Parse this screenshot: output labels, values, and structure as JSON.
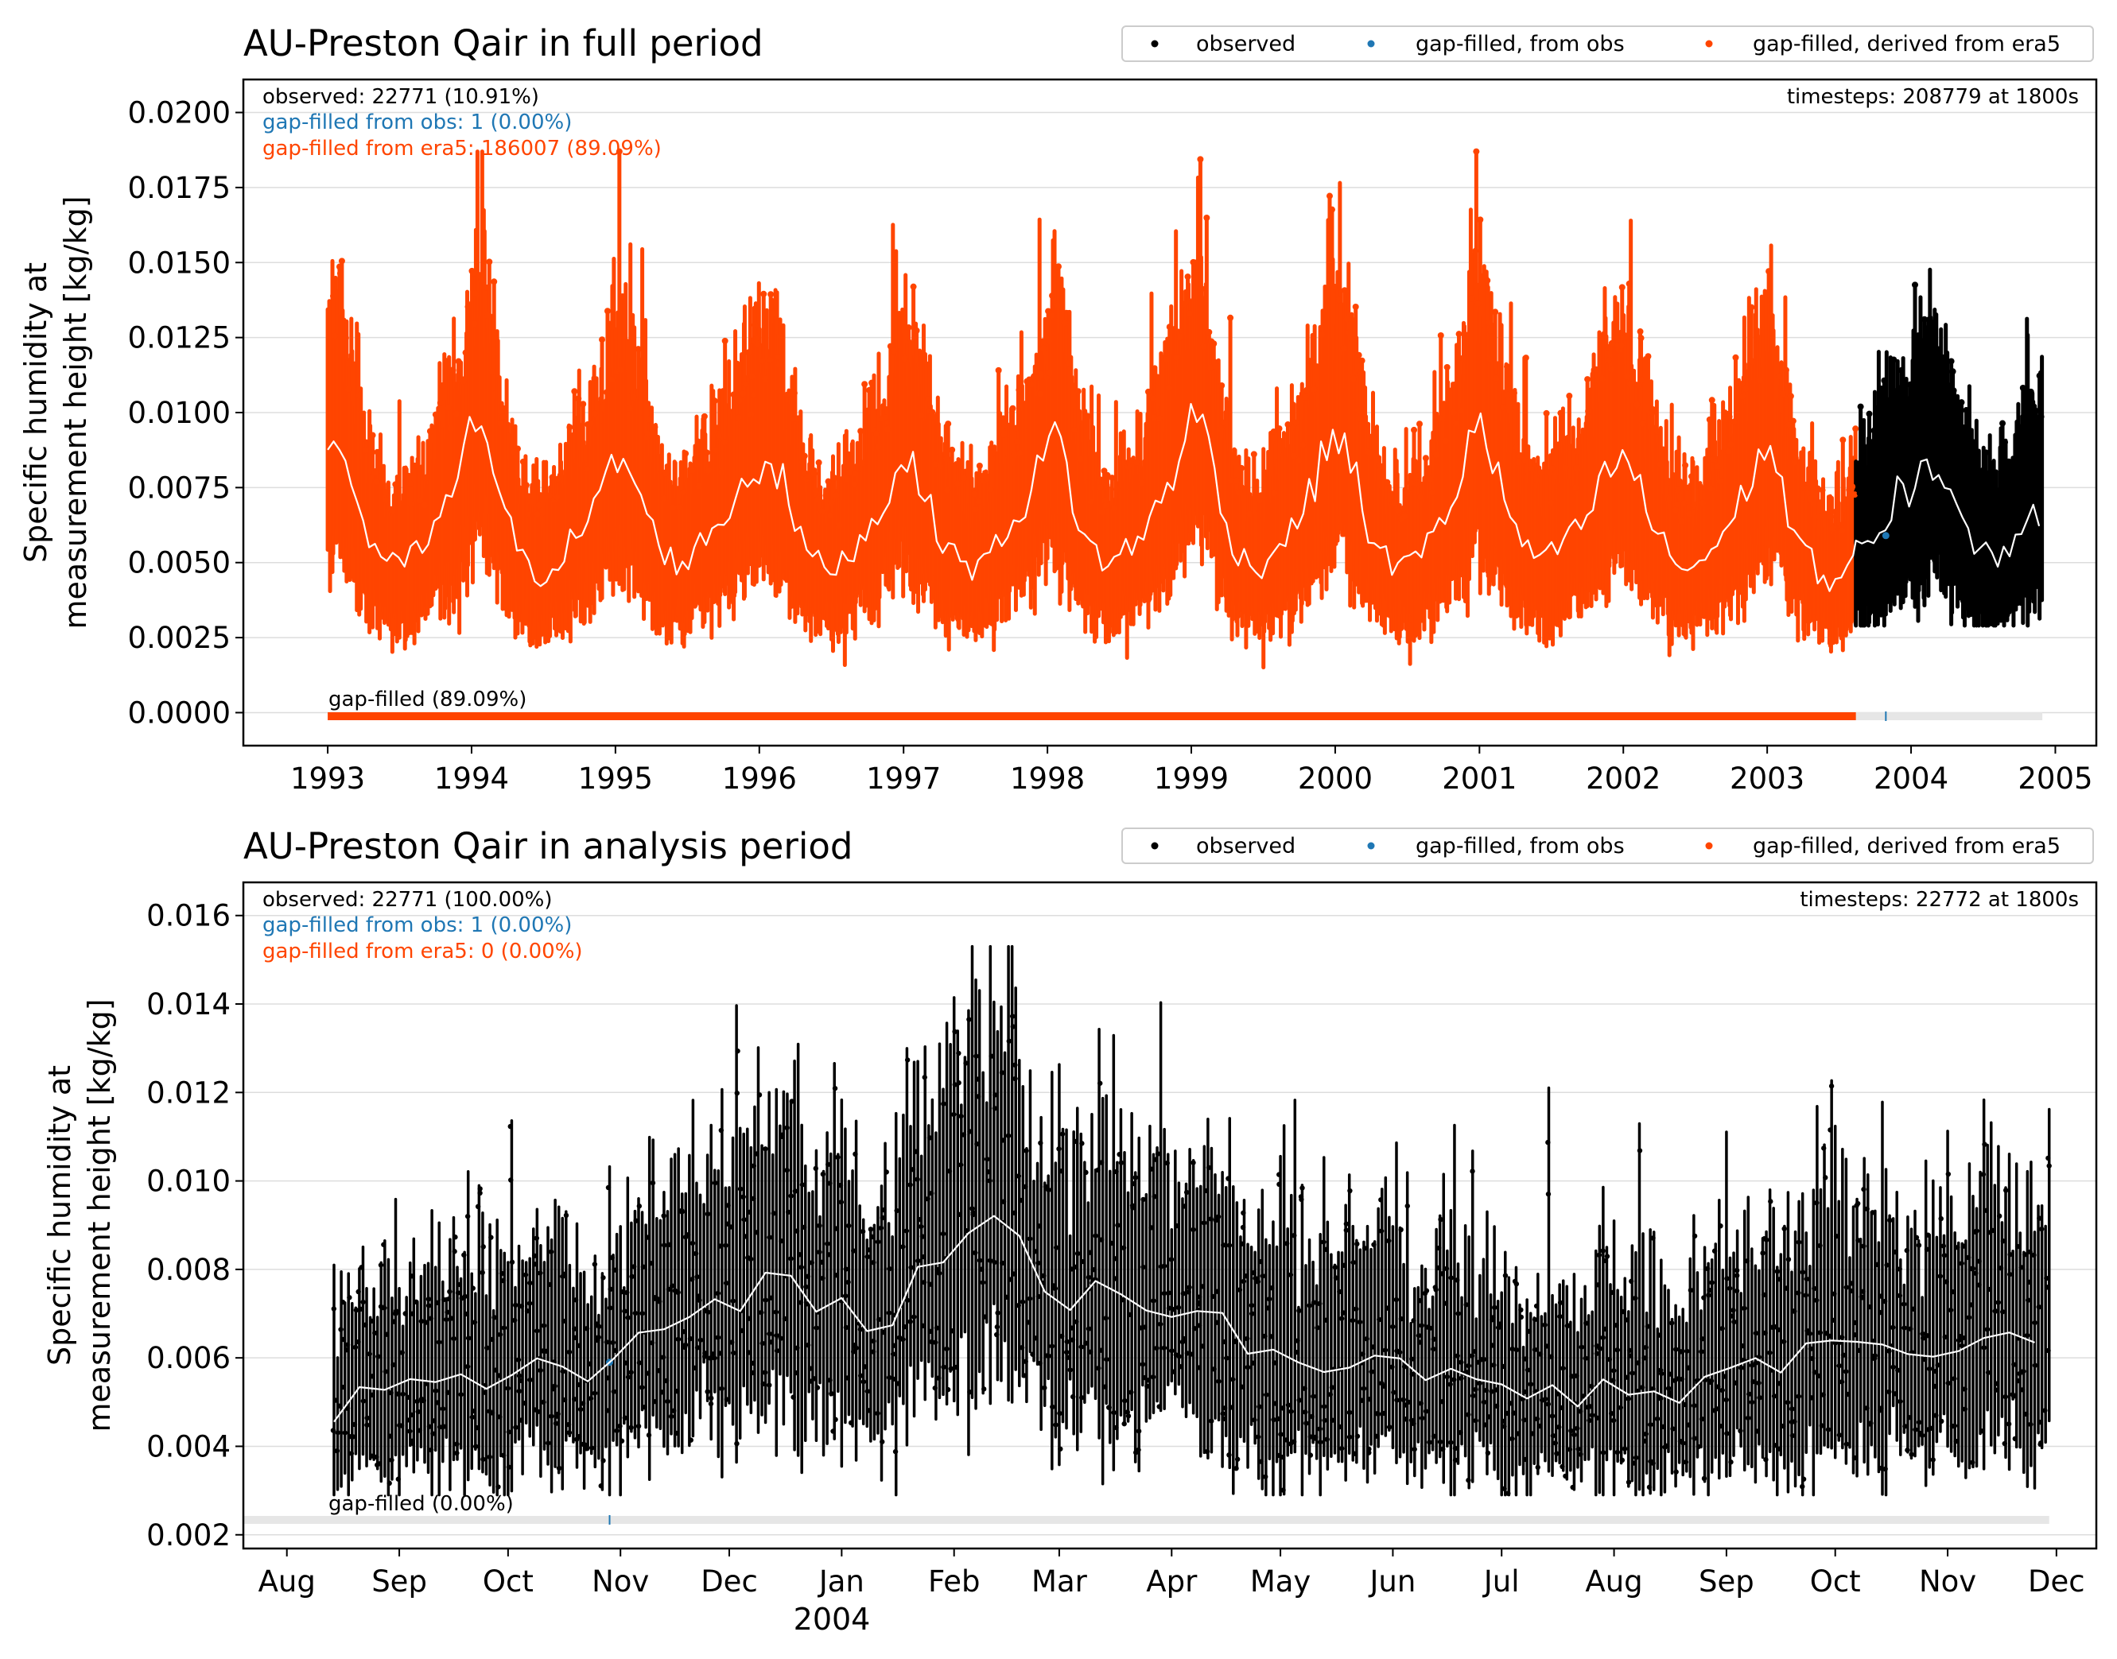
{
  "chart_data": [
    {
      "type": "scatter",
      "title": "AU-Preston Qair in full period",
      "ylabel_line1": "Specific humidity at",
      "ylabel_line2": "measurement height [kg/kg]",
      "xlabel": "",
      "xlim": [
        "1992-06-01",
        "2005-04-15"
      ],
      "ylim": [
        -0.0011,
        0.0211
      ],
      "yticks": [
        "0.0000",
        "0.0025",
        "0.0050",
        "0.0075",
        "0.0100",
        "0.0125",
        "0.0150",
        "0.0175",
        "0.0200"
      ],
      "xticks": [
        "1993",
        "1994",
        "1995",
        "1996",
        "1997",
        "1998",
        "1999",
        "2000",
        "2001",
        "2002",
        "2003",
        "2004",
        "2005"
      ],
      "grid": "horizontal",
      "legend": {
        "placement": "top-right",
        "entries": [
          {
            "label": "observed",
            "color": "#000000"
          },
          {
            "label": "gap-filled, from obs",
            "color": "#1f77b4"
          },
          {
            "label": "gap-filled, derived from era5",
            "color": "#ff4500"
          }
        ]
      },
      "stats": {
        "observed": "observed: 22771 (10.91%)",
        "from_obs": "gap-filled from obs: 1 (0.00%)",
        "from_era5": "gap-filled from era5: 186007 (89.09%)",
        "timesteps": "timesteps: 208779 at 1800s"
      },
      "gapbar_label": "gap-filled (89.09%)",
      "series": [
        {
          "name": "gap-filled, derived from era5",
          "color": "#ff4500",
          "period": [
            "1993-01-01",
            "2003-08-14"
          ],
          "monthly_mean_approx": [
            0.0085,
            0.009,
            0.0078,
            0.0062,
            0.0055,
            0.005,
            0.0048,
            0.0052,
            0.0055,
            0.0062,
            0.007,
            0.0075,
            0.0095,
            0.01,
            0.008,
            0.0065,
            0.0052,
            0.0048,
            0.0045,
            0.005,
            0.0055,
            0.006,
            0.0065,
            0.0072,
            0.0085,
            0.0082,
            0.0075,
            0.0062,
            0.0055,
            0.005,
            0.005,
            0.0055,
            0.006,
            0.0065,
            0.007,
            0.0078,
            0.0082,
            0.0085,
            0.0078,
            0.0065,
            0.0055,
            0.005,
            0.0048,
            0.005,
            0.0055,
            0.006,
            0.0065,
            0.0072,
            0.009,
            0.008,
            0.0072,
            0.0062,
            0.0055,
            0.005,
            0.0048,
            0.0052,
            0.0055,
            0.0062,
            0.0068,
            0.0075,
            0.0085,
            0.0095,
            0.0078,
            0.0062,
            0.0055,
            0.005,
            0.005,
            0.0055,
            0.0058,
            0.0065,
            0.0072,
            0.0082,
            0.0095,
            0.01,
            0.0085,
            0.0065,
            0.0055,
            0.005,
            0.0048,
            0.0052,
            0.0058,
            0.0062,
            0.007,
            0.008,
            0.0095,
            0.009,
            0.008,
            0.0062,
            0.0055,
            0.005,
            0.0048,
            0.0052,
            0.0055,
            0.0062,
            0.007,
            0.0078,
            0.01,
            0.009,
            0.0078,
            0.0065,
            0.0058,
            0.0052,
            0.005,
            0.0055,
            0.0058,
            0.0062,
            0.007,
            0.0078,
            0.0085,
            0.0082,
            0.0075,
            0.0062,
            0.0055,
            0.005,
            0.0048,
            0.005,
            0.0055,
            0.006,
            0.0066,
            0.0078,
            0.0085,
            0.009,
            0.007,
            0.0058,
            0.0052,
            0.0046,
            0.0042,
            0.0048,
            0.0052
          ],
          "range_min": 0.0012,
          "range_max": 0.0187
        },
        {
          "name": "observed",
          "color": "#000000",
          "period": [
            "2003-08-14",
            "2004-11-29"
          ],
          "monthly_mean_approx": [
            0.0055,
            0.0056,
            0.006,
            0.0068,
            0.0075,
            0.007,
            0.008,
            0.0085,
            0.0075,
            0.007,
            0.0058,
            0.0055,
            0.0053,
            0.0052,
            0.0056,
            0.0062,
            0.0065,
            0.0067
          ],
          "range_min": 0.0029,
          "range_max": 0.0153
        },
        {
          "name": "gap-filled, from obs",
          "color": "#1f77b4",
          "points": [
            {
              "x": "2003-10-29",
              "y": 0.0059
            }
          ]
        }
      ]
    },
    {
      "type": "scatter",
      "title": "AU-Preston Qair in analysis period",
      "ylabel_line1": "Specific humidity at",
      "ylabel_line2": "measurement height [kg/kg]",
      "xlabel": "2004",
      "xlim": [
        "2003-07-20",
        "2004-12-12"
      ],
      "ylim": [
        0.00169,
        0.01675
      ],
      "yticks": [
        "0.002",
        "0.004",
        "0.006",
        "0.008",
        "0.010",
        "0.012",
        "0.014",
        "0.016"
      ],
      "xticks": [
        "Aug",
        "Sep",
        "Oct",
        "Nov",
        "Dec",
        "Jan",
        "Feb",
        "Mar",
        "Apr",
        "May",
        "Jun",
        "Jul",
        "Aug",
        "Sep",
        "Oct",
        "Nov",
        "Dec"
      ],
      "grid": "horizontal",
      "legend": {
        "placement": "top-right",
        "entries": [
          {
            "label": "observed",
            "color": "#000000"
          },
          {
            "label": "gap-filled, from obs",
            "color": "#1f77b4"
          },
          {
            "label": "gap-filled, derived from era5",
            "color": "#ff4500"
          }
        ]
      },
      "stats": {
        "observed": "observed: 22771 (100.00%)",
        "from_obs": "gap-filled from obs: 1 (0.00%)",
        "from_era5": "gap-filled from era5: 0 (0.00%)",
        "timesteps": "timesteps: 22772 at 1800s"
      },
      "gapbar_label": "gap-filled (0.00%)",
      "series": [
        {
          "name": "observed",
          "color": "#000000",
          "period": [
            "2003-08-14",
            "2004-11-29"
          ],
          "weekly_mean_approx": [
            0.0046,
            0.0055,
            0.0052,
            0.0055,
            0.0055,
            0.0057,
            0.0053,
            0.0057,
            0.0063,
            0.0057,
            0.0055,
            0.0061,
            0.0068,
            0.0067,
            0.0075,
            0.0068,
            0.0078,
            0.0083,
            0.0069,
            0.0076,
            0.0067,
            0.0065,
            0.0081,
            0.0081,
            0.0088,
            0.0093,
            0.0086,
            0.0075,
            0.0069,
            0.0077,
            0.0074,
            0.0071,
            0.0071,
            0.007,
            0.0068,
            0.0058,
            0.0062,
            0.0055,
            0.0059,
            0.0058,
            0.0067,
            0.0052,
            0.0057,
            0.0055,
            0.0055,
            0.005,
            0.0055,
            0.0048,
            0.0056,
            0.0052,
            0.0052,
            0.005,
            0.0055,
            0.0057,
            0.006,
            0.0056,
            0.0065,
            0.0063,
            0.0062,
            0.0062,
            0.0058,
            0.0064,
            0.006,
            0.0071,
            0.0062,
            0.0067
          ],
          "range_min": 0.0029,
          "range_max": 0.0153
        },
        {
          "name": "gap-filled, from obs",
          "color": "#1f77b4",
          "points": [
            {
              "x": "2003-10-29",
              "y": 0.0059
            }
          ]
        }
      ]
    }
  ]
}
